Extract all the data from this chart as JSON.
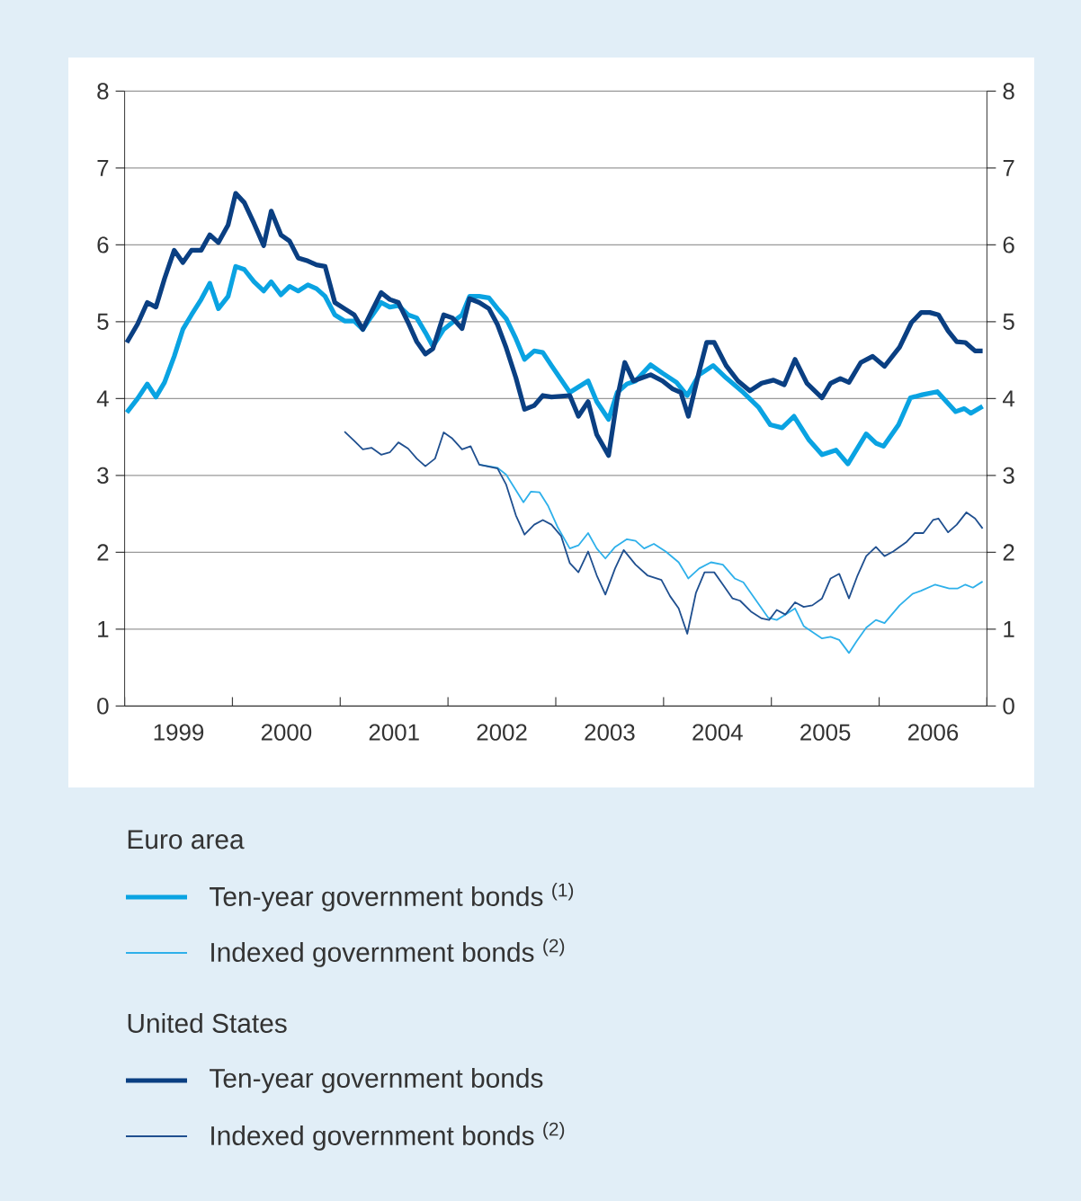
{
  "chart_data": {
    "type": "line",
    "xlim": [
      1999,
      2007
    ],
    "xticks": [
      {
        "value": 1999,
        "label": null
      },
      {
        "value": 1999.5,
        "label": "1999"
      },
      {
        "value": 2000,
        "label": null
      },
      {
        "value": 2000.5,
        "label": "2000"
      },
      {
        "value": 2001,
        "label": null
      },
      {
        "value": 2001.5,
        "label": "2001"
      },
      {
        "value": 2002,
        "label": null
      },
      {
        "value": 2002.5,
        "label": "2002"
      },
      {
        "value": 2003,
        "label": null
      },
      {
        "value": 2003.5,
        "label": "2003"
      },
      {
        "value": 2004,
        "label": null
      },
      {
        "value": 2004.5,
        "label": "2004"
      },
      {
        "value": 2005,
        "label": null
      },
      {
        "value": 2005.5,
        "label": "2005"
      },
      {
        "value": 2006,
        "label": null
      },
      {
        "value": 2006.5,
        "label": "2006"
      },
      {
        "value": 2007,
        "label": null
      }
    ],
    "ylim": [
      0,
      8
    ],
    "yticks": [
      0,
      1,
      2,
      3,
      4,
      5,
      6,
      7,
      8
    ],
    "y2lim": [
      0,
      8
    ],
    "y2ticks": [
      0,
      1,
      2,
      3,
      4,
      5,
      6,
      7,
      8
    ],
    "grid": "y",
    "legend": "bottom",
    "line_style": "solid",
    "annotations": [
      "Euro area",
      "United States"
    ],
    "series": [
      {
        "name": "Ten-year government bonds $^{(1)}$",
        "color": "#0aa3e2",
        "x": [
          1999.02,
          1999.12,
          1999.21,
          1999.29,
          1999.37,
          1999.46,
          1999.54,
          1999.62,
          1999.71,
          1999.79,
          1999.87,
          1999.96,
          2000.03,
          2000.11,
          2000.2,
          2000.29,
          2000.36,
          2000.45,
          2000.53,
          2000.61,
          2000.7,
          2000.78,
          2000.86,
          2000.95,
          2001.04,
          2001.13,
          2001.21,
          2001.29,
          2001.38,
          2001.46,
          2001.54,
          2001.63,
          2001.71,
          2001.79,
          2001.86,
          2001.96,
          2002.04,
          2002.13,
          2002.2,
          2002.29,
          2002.38,
          2002.46,
          2002.54,
          2002.63,
          2002.71,
          2002.8,
          2002.88,
          2002.96,
          2003.13,
          2003.3,
          2003.38,
          2003.49,
          2003.57,
          2003.66,
          2003.74,
          2003.88,
          2003.99,
          2004.12,
          2004.22,
          2004.33,
          2004.46,
          2004.58,
          2004.74,
          2004.88,
          2004.99,
          2005.1,
          2005.21,
          2005.35,
          2005.47,
          2005.6,
          2005.71,
          2005.88,
          2005.97,
          2006.04,
          2006.18,
          2006.29,
          2006.4,
          2006.54,
          2006.71,
          2006.79,
          2006.85,
          2006.96
        ],
        "values": [
          3.82,
          4.0,
          4.19,
          4.02,
          4.21,
          4.55,
          4.9,
          5.09,
          5.29,
          5.5,
          5.17,
          5.33,
          5.72,
          5.68,
          5.52,
          5.4,
          5.52,
          5.35,
          5.46,
          5.4,
          5.48,
          5.43,
          5.33,
          5.09,
          5.01,
          5.01,
          4.9,
          5.07,
          5.25,
          5.19,
          5.21,
          5.09,
          5.05,
          4.86,
          4.68,
          4.9,
          4.99,
          5.09,
          5.33,
          5.33,
          5.31,
          5.17,
          5.04,
          4.78,
          4.51,
          4.62,
          4.6,
          4.43,
          4.08,
          4.23,
          3.96,
          3.73,
          4.08,
          4.19,
          4.23,
          4.44,
          4.33,
          4.21,
          4.04,
          4.31,
          4.43,
          4.27,
          4.08,
          3.89,
          3.66,
          3.62,
          3.77,
          3.46,
          3.27,
          3.33,
          3.15,
          3.54,
          3.42,
          3.38,
          3.66,
          4.01,
          4.05,
          4.09,
          3.83,
          3.87,
          3.81,
          3.9
        ]
      },
      {
        "name": "Indexed government bonds $^{(2)}$",
        "color": "#2eb0ea",
        "x": [
          2002.29,
          2002.46,
          2002.54,
          2002.7,
          2002.77,
          2002.85,
          2002.93,
          2003.02,
          2003.13,
          2003.21,
          2003.3,
          2003.38,
          2003.46,
          2003.55,
          2003.66,
          2003.74,
          2003.82,
          2003.91,
          2004.02,
          2004.14,
          2004.23,
          2004.33,
          2004.44,
          2004.55,
          2004.66,
          2004.74,
          2004.85,
          2004.97,
          2005.05,
          2005.13,
          2005.22,
          2005.3,
          2005.47,
          2005.55,
          2005.63,
          2005.72,
          2005.79,
          2005.88,
          2005.97,
          2006.05,
          2006.19,
          2006.31,
          2006.39,
          2006.52,
          2006.65,
          2006.73,
          2006.8,
          2006.87,
          2006.96
        ],
        "values": [
          3.14,
          3.1,
          3.01,
          2.65,
          2.79,
          2.78,
          2.6,
          2.32,
          2.05,
          2.09,
          2.25,
          2.05,
          1.92,
          2.07,
          2.17,
          2.15,
          2.05,
          2.11,
          2.01,
          1.87,
          1.66,
          1.79,
          1.87,
          1.84,
          1.66,
          1.61,
          1.39,
          1.15,
          1.12,
          1.19,
          1.27,
          1.04,
          0.88,
          0.9,
          0.86,
          0.69,
          0.84,
          1.02,
          1.12,
          1.08,
          1.31,
          1.46,
          1.5,
          1.58,
          1.53,
          1.53,
          1.58,
          1.54,
          1.62
        ]
      },
      {
        "name": "Ten-year government bonds",
        "color": "#0a3f82",
        "x": [
          1999.02,
          1999.12,
          1999.21,
          1999.29,
          1999.37,
          1999.46,
          1999.54,
          1999.62,
          1999.71,
          1999.79,
          1999.87,
          1999.96,
          2000.03,
          2000.11,
          2000.2,
          2000.29,
          2000.36,
          2000.45,
          2000.53,
          2000.61,
          2000.7,
          2000.78,
          2000.86,
          2000.95,
          2001.04,
          2001.13,
          2001.21,
          2001.29,
          2001.38,
          2001.46,
          2001.54,
          2001.63,
          2001.71,
          2001.79,
          2001.86,
          2001.96,
          2002.04,
          2002.13,
          2002.2,
          2002.29,
          2002.38,
          2002.46,
          2002.54,
          2002.63,
          2002.71,
          2002.8,
          2002.88,
          2002.96,
          2003.13,
          2003.21,
          2003.3,
          2003.38,
          2003.49,
          2003.57,
          2003.64,
          2003.72,
          2003.8,
          2003.88,
          2003.99,
          2004.08,
          2004.16,
          2004.23,
          2004.33,
          2004.4,
          2004.47,
          2004.58,
          2004.69,
          2004.8,
          2004.91,
          2005.02,
          2005.12,
          2005.22,
          2005.33,
          2005.47,
          2005.55,
          2005.64,
          2005.72,
          2005.83,
          2005.94,
          2006.05,
          2006.19,
          2006.3,
          2006.39,
          2006.47,
          2006.55,
          2006.64,
          2006.72,
          2006.8,
          2006.89,
          2006.96
        ],
        "values": [
          4.73,
          4.97,
          5.25,
          5.19,
          5.56,
          5.93,
          5.77,
          5.93,
          5.93,
          6.13,
          6.03,
          6.26,
          6.67,
          6.55,
          6.28,
          5.99,
          6.44,
          6.13,
          6.05,
          5.83,
          5.79,
          5.74,
          5.72,
          5.25,
          5.17,
          5.09,
          4.9,
          5.13,
          5.38,
          5.29,
          5.25,
          4.99,
          4.74,
          4.58,
          4.65,
          5.09,
          5.05,
          4.91,
          5.3,
          5.25,
          5.17,
          4.96,
          4.66,
          4.27,
          3.86,
          3.91,
          4.04,
          4.02,
          4.04,
          3.77,
          3.96,
          3.53,
          3.26,
          4.0,
          4.47,
          4.23,
          4.27,
          4.31,
          4.23,
          4.13,
          4.08,
          3.77,
          4.35,
          4.73,
          4.73,
          4.43,
          4.23,
          4.1,
          4.2,
          4.24,
          4.18,
          4.51,
          4.2,
          4.01,
          4.2,
          4.26,
          4.21,
          4.47,
          4.55,
          4.42,
          4.67,
          4.99,
          5.12,
          5.12,
          5.09,
          4.88,
          4.74,
          4.73,
          4.62,
          4.62
        ]
      },
      {
        "name": "Indexed government bonds $^{(2)}$",
        "color": "#1f4f8f",
        "x": [
          2001.04,
          2001.13,
          2001.21,
          2001.29,
          2001.38,
          2001.46,
          2001.54,
          2001.63,
          2001.71,
          2001.79,
          2001.88,
          2001.96,
          2002.04,
          2002.13,
          2002.21,
          2002.29,
          2002.46,
          2002.54,
          2002.63,
          2002.71,
          2002.8,
          2002.88,
          2002.96,
          2003.05,
          2003.13,
          2003.21,
          2003.3,
          2003.38,
          2003.46,
          2003.55,
          2003.63,
          2003.74,
          2003.85,
          2003.98,
          2004.06,
          2004.14,
          2004.22,
          2004.3,
          2004.38,
          2004.47,
          2004.55,
          2004.64,
          2004.71,
          2004.81,
          2004.91,
          2004.98,
          2005.05,
          2005.13,
          2005.22,
          2005.3,
          2005.38,
          2005.47,
          2005.55,
          2005.63,
          2005.72,
          2005.8,
          2005.88,
          2005.97,
          2006.05,
          2006.13,
          2006.25,
          2006.33,
          2006.41,
          2006.5,
          2006.55,
          2006.64,
          2006.72,
          2006.81,
          2006.89,
          2006.96
        ],
        "values": [
          3.57,
          3.45,
          3.34,
          3.36,
          3.27,
          3.3,
          3.43,
          3.35,
          3.22,
          3.12,
          3.22,
          3.56,
          3.48,
          3.34,
          3.38,
          3.14,
          3.09,
          2.88,
          2.48,
          2.23,
          2.36,
          2.42,
          2.36,
          2.21,
          1.86,
          1.74,
          2.01,
          1.7,
          1.45,
          1.79,
          2.03,
          1.84,
          1.7,
          1.64,
          1.43,
          1.27,
          0.94,
          1.47,
          1.74,
          1.74,
          1.58,
          1.4,
          1.37,
          1.23,
          1.14,
          1.12,
          1.25,
          1.19,
          1.35,
          1.29,
          1.31,
          1.4,
          1.66,
          1.72,
          1.4,
          1.7,
          1.95,
          2.07,
          1.95,
          2.01,
          2.13,
          2.25,
          2.25,
          2.42,
          2.44,
          2.26,
          2.36,
          2.52,
          2.44,
          2.31
        ]
      }
    ]
  }
}
